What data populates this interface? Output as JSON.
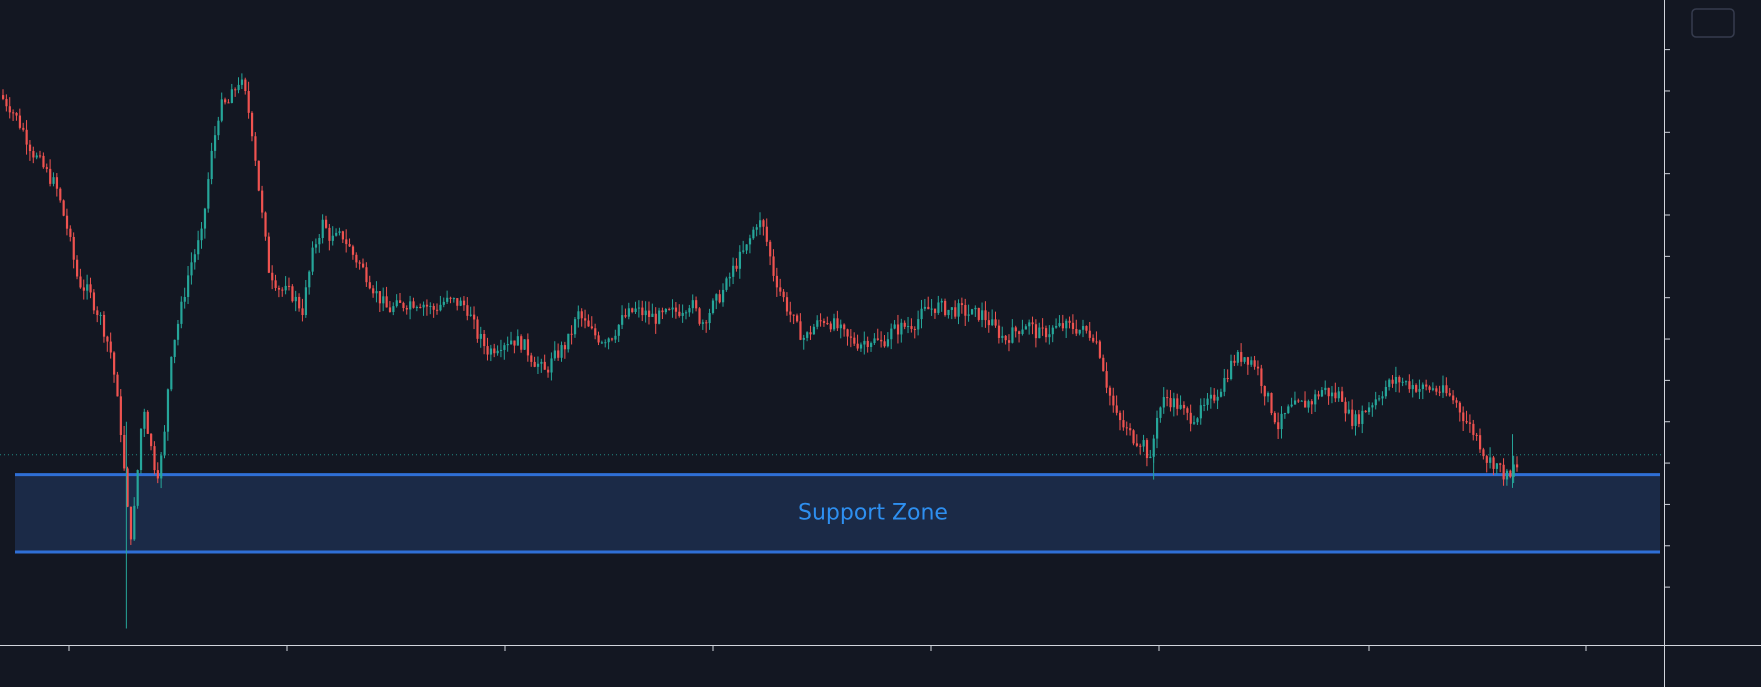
{
  "chart_data": {
    "type": "candlestick",
    "theme": "dark",
    "grid": false,
    "ylim": [
      -3.4,
      12.2
    ],
    "ytick_values": [
      11,
      10,
      9,
      8,
      7,
      6,
      5,
      4,
      3,
      2,
      1,
      0,
      -1,
      -2
    ],
    "xtick_count": 8,
    "annotations": [
      {
        "type": "support_zone",
        "label": "Support Zone",
        "from": 0.72,
        "to": -1.15
      }
    ],
    "current_price_line": 1.2,
    "points": [
      [
        0,
        9.9
      ],
      [
        10,
        9.6
      ],
      [
        20,
        9.1
      ],
      [
        30,
        8.5
      ],
      [
        40,
        8.1
      ],
      [
        50,
        7.7
      ],
      [
        60,
        6.7
      ],
      [
        70,
        5.4
      ],
      [
        80,
        5.1
      ],
      [
        90,
        4.5
      ],
      [
        100,
        3.6
      ],
      [
        108,
        1.8
      ],
      [
        115,
        -0.5
      ],
      [
        118,
        -0.8
      ],
      [
        122,
        0.5
      ],
      [
        128,
        2.5
      ],
      [
        134,
        1.5
      ],
      [
        140,
        0.7
      ],
      [
        146,
        1.3
      ],
      [
        152,
        3.6
      ],
      [
        160,
        4.5
      ],
      [
        170,
        5.8
      ],
      [
        180,
        6.5
      ],
      [
        188,
        8.3
      ],
      [
        196,
        9.6
      ],
      [
        204,
        9.7
      ],
      [
        214,
        10.3
      ],
      [
        220,
        9.8
      ],
      [
        226,
        8.9
      ],
      [
        232,
        7.4
      ],
      [
        240,
        5.7
      ],
      [
        250,
        5.2
      ],
      [
        260,
        5.1
      ],
      [
        270,
        4.7
      ],
      [
        280,
        6.2
      ],
      [
        288,
        6.8
      ],
      [
        296,
        6.4
      ],
      [
        306,
        6.5
      ],
      [
        316,
        6.0
      ],
      [
        326,
        5.6
      ],
      [
        336,
        5.1
      ],
      [
        346,
        4.7
      ],
      [
        356,
        4.8
      ],
      [
        366,
        4.9
      ],
      [
        376,
        4.9
      ],
      [
        386,
        4.7
      ],
      [
        396,
        4.9
      ],
      [
        406,
        4.9
      ],
      [
        416,
        4.8
      ],
      [
        426,
        4.1
      ],
      [
        436,
        3.7
      ],
      [
        446,
        3.9
      ],
      [
        456,
        4.0
      ],
      [
        466,
        3.9
      ],
      [
        476,
        3.5
      ],
      [
        486,
        3.2
      ],
      [
        496,
        3.6
      ],
      [
        506,
        3.9
      ],
      [
        516,
        4.6
      ],
      [
        526,
        4.2
      ],
      [
        536,
        4.0
      ],
      [
        546,
        4.1
      ],
      [
        556,
        4.5
      ],
      [
        566,
        4.7
      ],
      [
        576,
        4.6
      ],
      [
        586,
        4.5
      ],
      [
        596,
        4.6
      ],
      [
        606,
        4.7
      ],
      [
        616,
        4.9
      ],
      [
        626,
        4.4
      ],
      [
        636,
        4.8
      ],
      [
        646,
        5.2
      ],
      [
        656,
        5.8
      ],
      [
        666,
        6.2
      ],
      [
        676,
        6.9
      ],
      [
        682,
        6.6
      ],
      [
        690,
        5.6
      ],
      [
        700,
        4.9
      ],
      [
        710,
        4.3
      ],
      [
        718,
        4.0
      ],
      [
        726,
        4.3
      ],
      [
        736,
        4.5
      ],
      [
        746,
        4.3
      ],
      [
        756,
        4.0
      ],
      [
        766,
        3.9
      ],
      [
        776,
        4.0
      ],
      [
        786,
        3.9
      ],
      [
        796,
        4.2
      ],
      [
        806,
        4.3
      ],
      [
        816,
        4.4
      ],
      [
        826,
        4.7
      ],
      [
        836,
        4.8
      ],
      [
        846,
        4.7
      ],
      [
        856,
        4.7
      ],
      [
        866,
        4.6
      ],
      [
        876,
        4.6
      ],
      [
        886,
        4.3
      ],
      [
        896,
        4.0
      ],
      [
        906,
        4.2
      ],
      [
        916,
        4.4
      ],
      [
        926,
        4.1
      ],
      [
        936,
        4.2
      ],
      [
        946,
        4.3
      ],
      [
        956,
        4.3
      ],
      [
        966,
        4.2
      ],
      [
        976,
        4.1
      ],
      [
        982,
        3.6
      ],
      [
        988,
        2.8
      ],
      [
        996,
        2.1
      ],
      [
        1004,
        1.8
      ],
      [
        1012,
        1.6
      ],
      [
        1020,
        1.5
      ],
      [
        1026,
        1.0
      ],
      [
        1032,
        2.2
      ],
      [
        1040,
        2.6
      ],
      [
        1050,
        2.4
      ],
      [
        1060,
        2.1
      ],
      [
        1070,
        2.2
      ],
      [
        1080,
        2.5
      ],
      [
        1090,
        2.9
      ],
      [
        1100,
        3.5
      ],
      [
        1110,
        3.6
      ],
      [
        1120,
        3.4
      ],
      [
        1130,
        2.6
      ],
      [
        1140,
        1.9
      ],
      [
        1150,
        2.3
      ],
      [
        1160,
        2.4
      ],
      [
        1170,
        2.5
      ],
      [
        1180,
        2.8
      ],
      [
        1190,
        2.6
      ],
      [
        1196,
        2.7
      ],
      [
        1202,
        2.2
      ],
      [
        1208,
        2.0
      ],
      [
        1218,
        2.3
      ],
      [
        1228,
        2.6
      ],
      [
        1238,
        2.9
      ],
      [
        1248,
        3.0
      ],
      [
        1258,
        2.9
      ],
      [
        1268,
        2.8
      ],
      [
        1278,
        2.8
      ],
      [
        1288,
        2.7
      ],
      [
        1298,
        2.5
      ],
      [
        1308,
        2.0
      ],
      [
        1318,
        1.6
      ],
      [
        1326,
        1.1
      ],
      [
        1334,
        1.0
      ],
      [
        1342,
        0.7
      ],
      [
        1348,
        0.6
      ],
      [
        1350,
        0.9
      ]
    ],
    "wicks": [
      {
        "x": 110,
        "high": 2.0,
        "low": -3.0
      },
      {
        "x": 1026,
        "high": 1.4,
        "low": 0.6
      },
      {
        "x": 1346,
        "high": 1.7,
        "low": 0.4
      }
    ]
  },
  "colors": {
    "background": "#131722",
    "up": "#26a69a",
    "down": "#ef5350",
    "zone_line": "#2f6fd6",
    "zone_fill": "#1b2a47",
    "zone_text": "#2e8ff0",
    "axis": "#d1d4dc",
    "price_line": "#26a69a"
  },
  "icons": {
    "corner_button": "settings-button-outline"
  }
}
